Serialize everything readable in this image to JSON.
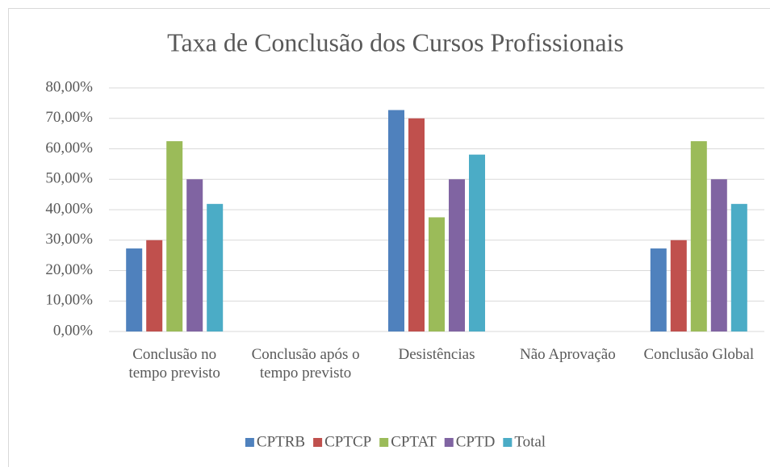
{
  "chart_data": {
    "type": "bar",
    "title": "Taxa de Conclusão dos Cursos Profissionais",
    "categories": [
      "Conclusão no tempo previsto",
      "Conclusão após o tempo previsto",
      "Desistências",
      "Não Aprovação",
      "Conclusão Global"
    ],
    "series": [
      {
        "name": "CPTRB",
        "color": "#4f81bd",
        "values": [
          27.27,
          0,
          72.73,
          0,
          27.27
        ]
      },
      {
        "name": "CPTCP",
        "color": "#c0504d",
        "values": [
          30,
          0,
          70,
          0,
          30
        ]
      },
      {
        "name": "CPTAT",
        "color": "#9bbb59",
        "values": [
          62.5,
          0,
          37.5,
          0,
          62.5
        ]
      },
      {
        "name": "CPTD",
        "color": "#8064a2",
        "values": [
          50,
          0,
          50,
          0,
          50
        ]
      },
      {
        "name": "Total",
        "color": "#4bacc6",
        "values": [
          41.9,
          0,
          58.1,
          0,
          41.9
        ]
      }
    ],
    "ylim": [
      0,
      80
    ],
    "yticks": [
      {
        "value": 0,
        "label": "0,00%"
      },
      {
        "value": 10,
        "label": "10,00%"
      },
      {
        "value": 20,
        "label": "20,00%"
      },
      {
        "value": 30,
        "label": "30,00%"
      },
      {
        "value": 40,
        "label": "40,00%"
      },
      {
        "value": 50,
        "label": "50,00%"
      },
      {
        "value": 60,
        "label": "60,00%"
      },
      {
        "value": 70,
        "label": "70,00%"
      },
      {
        "value": 80,
        "label": "80,00%"
      }
    ],
    "grid": true,
    "legend": "bottom"
  }
}
